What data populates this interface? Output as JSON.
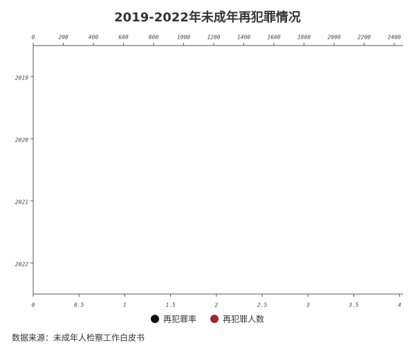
{
  "chart_data": {
    "type": "bar",
    "orientation": "horizontal",
    "title": "2019-2022年未成年再犯罪情况",
    "categories": [
      "2019",
      "2020",
      "2021",
      "2022"
    ],
    "series": [
      {
        "name": "再犯罪率",
        "color": "#111111",
        "values": [
          null,
          null,
          null,
          null
        ]
      },
      {
        "name": "再犯罪人数",
        "color": "#9b2a2a",
        "axis": "x2",
        "values": [
          null,
          null,
          null,
          null
        ]
      }
    ],
    "xlim": [
      0,
      4.04
    ],
    "xticks": [
      0,
      0.5,
      1,
      1.5,
      2,
      2.5,
      3,
      3.5,
      4
    ],
    "x2lim": [
      0,
      2460
    ],
    "x2ticks": [
      0,
      200,
      400,
      600,
      800,
      1000,
      1200,
      1400,
      1600,
      1800,
      2000,
      2200,
      2400
    ],
    "source": "数据来源：未成年人检察工作白皮书"
  }
}
